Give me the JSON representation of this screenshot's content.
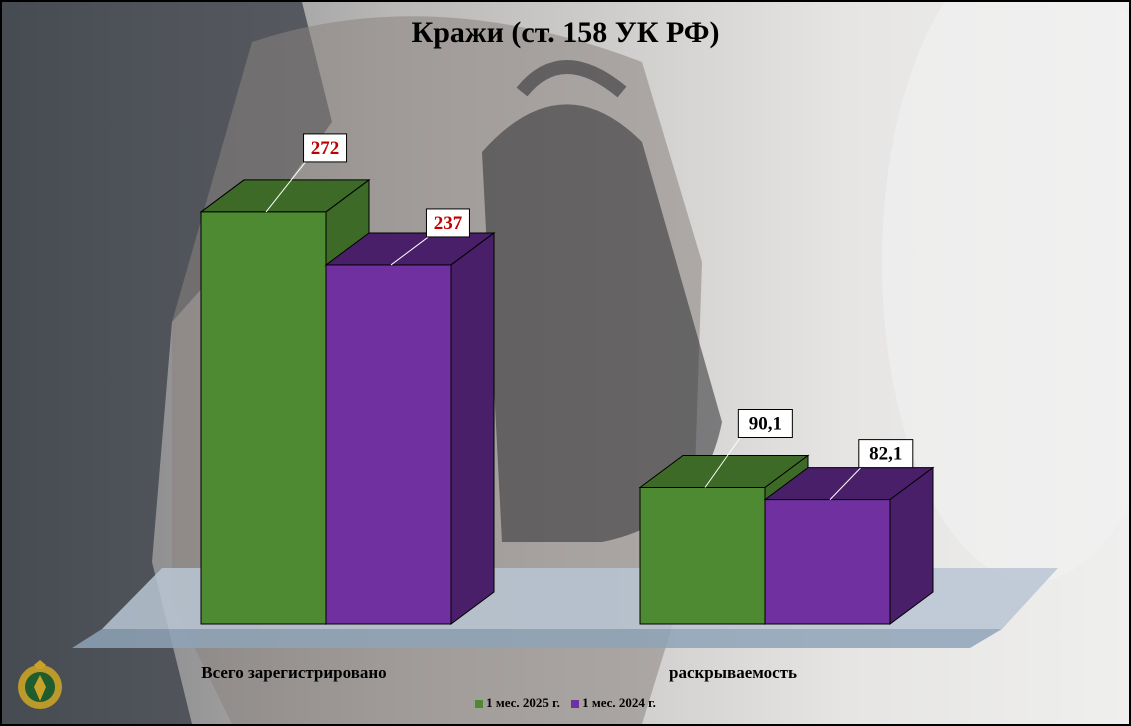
{
  "chart_data": {
    "type": "bar",
    "title": "Кражи (ст. 158 УК РФ)",
    "categories": [
      "Всего зарегистрировано",
      "раскрываемость"
    ],
    "series": [
      {
        "name": "1 мес. 2025 г.",
        "values": [
          272,
          90.1
        ],
        "labels": [
          "272",
          "90,1"
        ],
        "color": "#4e8a31",
        "dark": "#3d6a26",
        "label_color": "#c00000"
      },
      {
        "name": "1 мес. 2024 г.",
        "values": [
          237,
          82.1
        ],
        "labels": [
          "237",
          "82,1"
        ],
        "color": "#7030a0",
        "dark": "#4a1f6a",
        "label_color": "#c00000"
      }
    ],
    "value_label_colors": [
      "#c00000",
      "#000000"
    ],
    "legend_position": "bottom",
    "grid": false,
    "three_d": true
  }
}
